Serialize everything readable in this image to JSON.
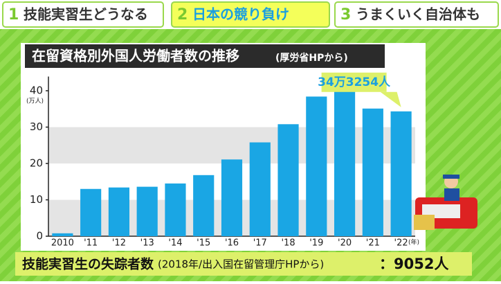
{
  "header": {
    "tabs": [
      {
        "number": "1",
        "label": "技能実習生どうなる"
      },
      {
        "number": "2",
        "label": "日本の競り負け"
      },
      {
        "number": "3",
        "label": "うまくいく自治体も"
      }
    ]
  },
  "chart_data": {
    "type": "bar",
    "title": "在留資格別外国人労働者数の推移",
    "subtitle": "(厚労省HPから)",
    "y_unit": "(万人)",
    "x_unit": "(年)",
    "categories": [
      "2010",
      "'11",
      "'12",
      "'13",
      "'14",
      "'15",
      "'16",
      "'17",
      "'18",
      "'19",
      "'20",
      "'21",
      "'22"
    ],
    "values": [
      0.8,
      13,
      13.4,
      13.6,
      14.5,
      16.8,
      21.1,
      25.8,
      30.8,
      38.4,
      40.2,
      35.1,
      34.3254
    ],
    "value_labels": [
      null,
      null,
      null,
      null,
      null,
      null,
      null,
      null,
      null,
      null,
      null,
      null,
      "34万3254人"
    ],
    "color": "#1aa6e4",
    "ylim": [
      0,
      42
    ],
    "yticks": [
      0,
      10,
      20,
      30,
      40
    ],
    "grid": true
  },
  "footer": {
    "label": "技能実習生の失踪者数",
    "source": "(2018年/出入国在留管理庁HPから)",
    "value": "：9052人"
  }
}
